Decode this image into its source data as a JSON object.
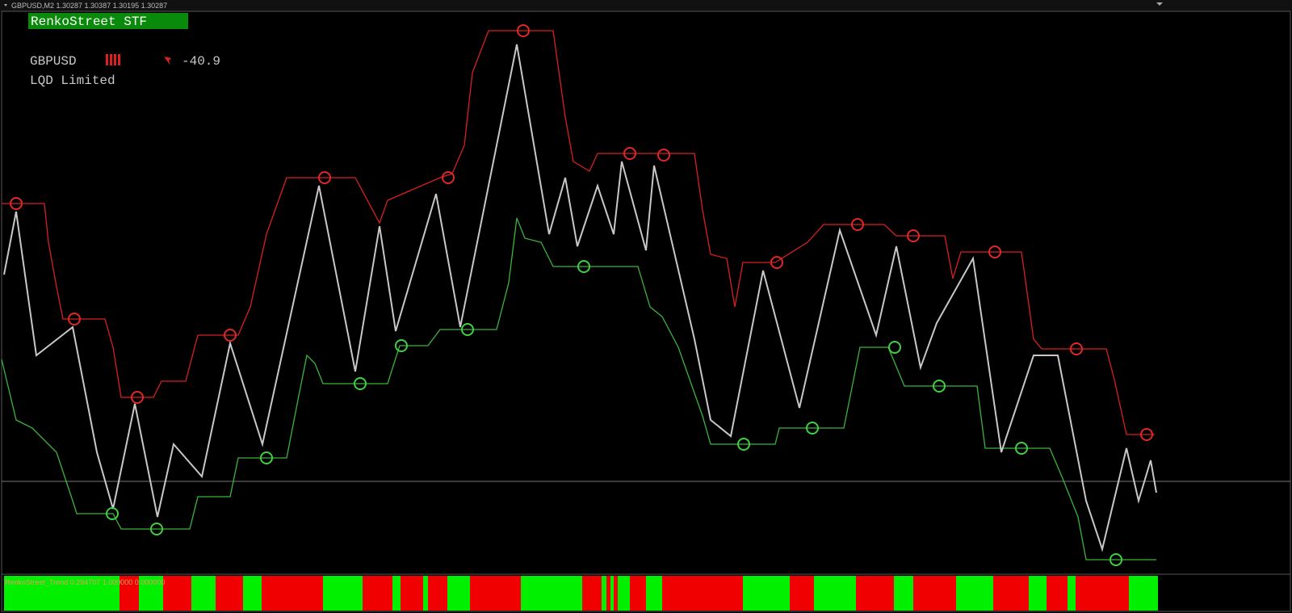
{
  "header": {
    "title": "GBPUSD,M2  1.30287 1.30387 1.30195 1.30287"
  },
  "panel": {
    "name": "RenkoStreet STF",
    "symbol": "GBPUSD",
    "change": "-40.9",
    "company": "LQD Limited"
  },
  "indicator": {
    "label": "RenkoStreet_Trend 0.294707 1.000000 0.000000"
  }
}
